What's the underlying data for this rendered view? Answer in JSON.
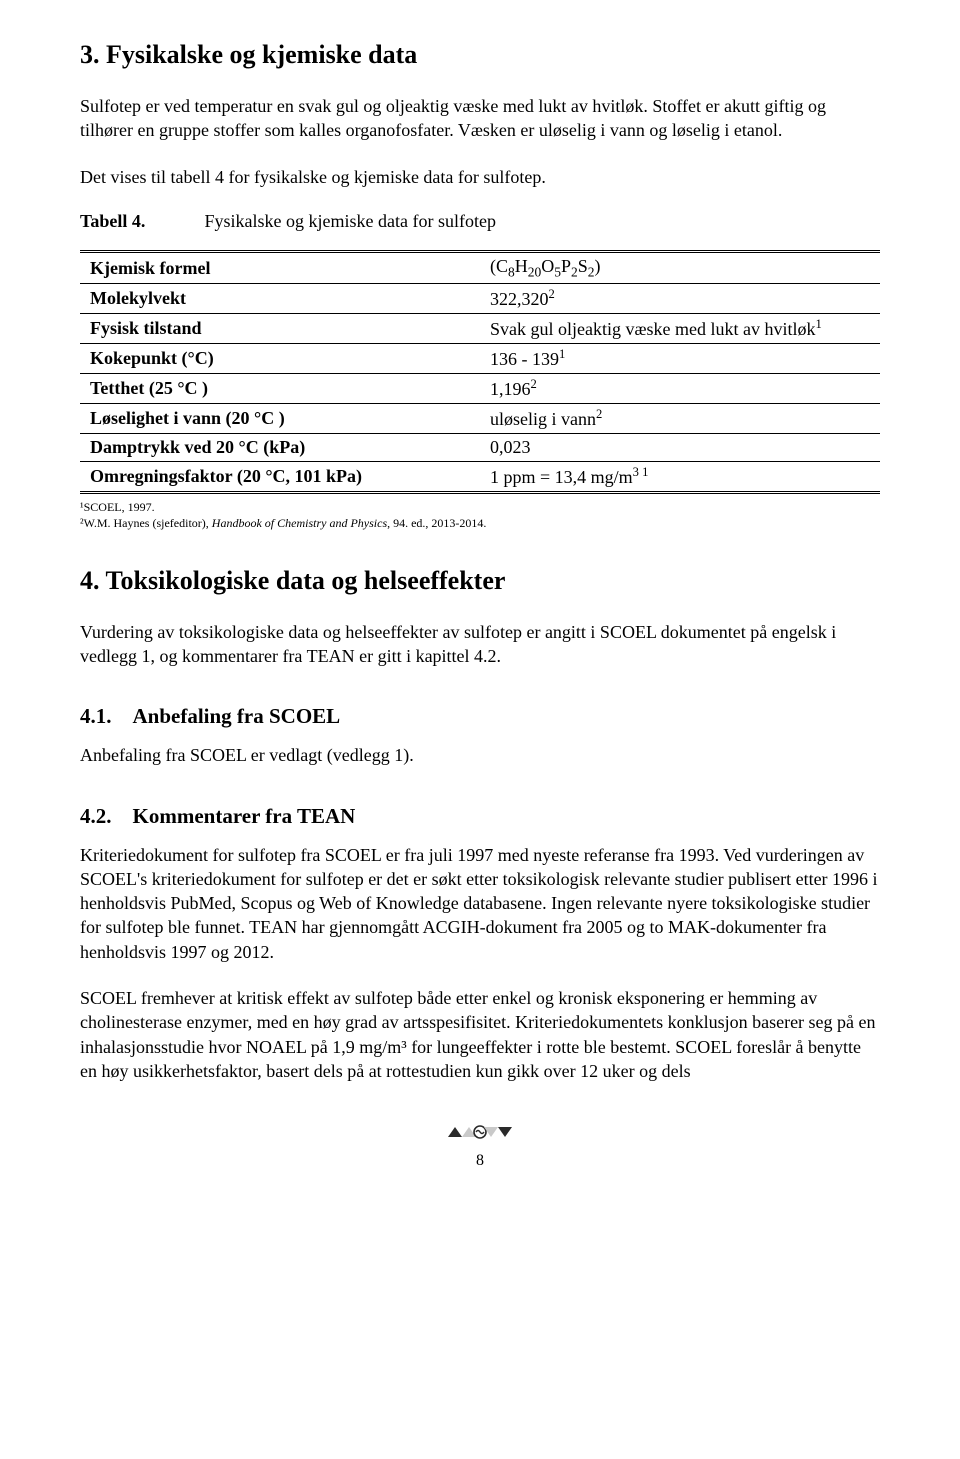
{
  "section3": {
    "heading": "3. Fysikalske og kjemiske data",
    "para1": "Sulfotep er ved temperatur en svak gul og oljeaktig væske med lukt av hvitløk. Stoffet er akutt giftig og tilhører en gruppe stoffer som kalles organofosfater. Væsken er uløselig i vann og løselig i etanol.",
    "para2": "Det vises til tabell 4 for fysikalske og kjemiske data for sulfotep."
  },
  "table4": {
    "caption_label": "Tabell 4.",
    "caption_text": "Fysikalske og kjemiske data for sulfotep",
    "rows": [
      {
        "key": "Kjemisk formel",
        "value_html": "(C<sub>8</sub>H<sub>20</sub>O<sub>5</sub>P<sub>2</sub>S<sub>2</sub>)"
      },
      {
        "key": "Molekylvekt",
        "value_html": "322,320<sup>2</sup>"
      },
      {
        "key": "Fysisk tilstand",
        "value_html": "Svak gul oljeaktig væske med lukt av hvitløk<sup>1</sup>"
      },
      {
        "key": "Kokepunkt (°C)",
        "value_html": "136 - 139<sup>1</sup>"
      },
      {
        "key": "Tetthet (25 °C )",
        "value_html": "1,196<sup>2</sup>"
      },
      {
        "key": "Løselighet i vann (20 °C )",
        "value_html": "uløselig i vann<sup>2</sup>"
      },
      {
        "key": "Damptrykk ved 20 °C (kPa)",
        "value_html": "0,023"
      },
      {
        "key": "Omregningsfaktor (20 °C, 101 kPa)",
        "value_html": "1 ppm = 13,4 mg/m<sup>3 1</sup>"
      }
    ],
    "footnote1": "¹SCOEL, 1997.",
    "footnote2_pre": "²W.M. Haynes (sjefeditor), ",
    "footnote2_italic": "Handbook of Chemistry and Physics",
    "footnote2_post": ", 94. ed., 2013-2014."
  },
  "section4": {
    "heading": "4. Toksikologiske data og helseeffekter",
    "intro": "Vurdering av toksikologiske data og helseeffekter av sulfotep er angitt i SCOEL dokumentet på engelsk i vedlegg 1, og kommentarer fra TEAN er gitt i kapittel 4.2.",
    "sub41_heading": "4.1. Anbefaling fra SCOEL",
    "sub41_text": "Anbefaling fra SCOEL er vedlagt (vedlegg 1).",
    "sub42_heading": "4.2. Kommentarer fra TEAN",
    "sub42_p1": "Kriteriedokument for sulfotep fra SCOEL er fra juli 1997 med nyeste referanse fra 1993. Ved vurderingen av SCOEL's kriteriedokument for sulfotep er det er søkt etter toksikologisk relevante studier publisert etter 1996 i henholdsvis PubMed, Scopus og Web of Knowledge databasene. Ingen relevante nyere toksikologiske studier for sulfotep ble funnet. TEAN har gjennomgått ACGIH-dokument fra 2005 og to MAK-dokumenter fra henholdsvis 1997 og 2012.",
    "sub42_p2": "SCOEL fremhever at kritisk effekt av sulfotep både etter enkel og kronisk eksponering er hemming av cholinesterase enzymer, med en høy grad av artsspesifisitet. Kriteriedokumentets konklusjon baserer seg på en inhalasjonsstudie hvor NOAEL på 1,9 mg/m³ for lungeeffekter i rotte ble bestemt. SCOEL foreslår å benytte en høy usikkerhetsfaktor, basert dels på at rottestudien kun gikk over 12 uker og dels"
  },
  "footer": {
    "page_number": "8",
    "mark_colors": {
      "dark": "#2a2a2a",
      "light": "#c9c9c9"
    }
  },
  "style": {
    "background_color": "#ffffff",
    "text_color": "#000000",
    "heading_fontsize": 26,
    "subheading_fontsize": 21,
    "body_fontsize": 18,
    "footnote_fontsize": 12,
    "table_border_color": "#000000"
  }
}
